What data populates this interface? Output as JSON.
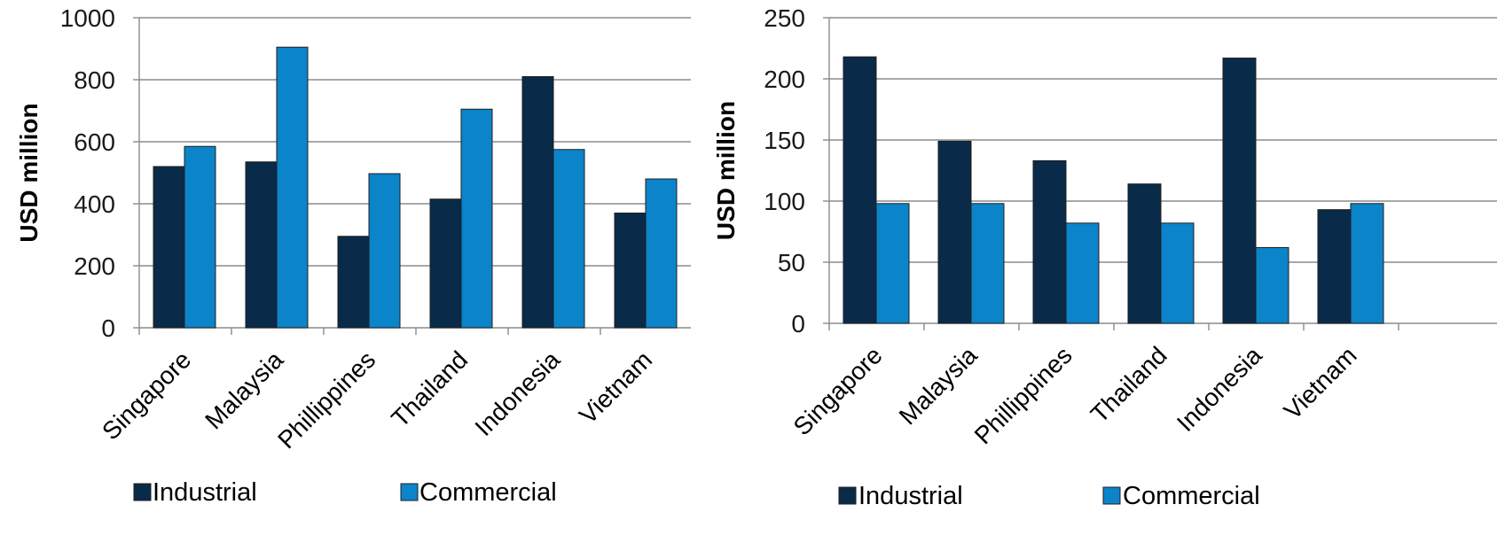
{
  "chart_data": [
    {
      "type": "bar",
      "title": "",
      "xlabel": "",
      "ylabel": "USD million",
      "ylim": [
        0,
        1000
      ],
      "yticks": [
        "0",
        "200",
        "400",
        "600",
        "800",
        "1000"
      ],
      "categories": [
        "Singapore",
        "Malaysia",
        "Phillippines",
        "Thailand",
        "Indonesia",
        "Vietnam"
      ],
      "series": [
        {
          "name": "Industrial",
          "color": "#0a2a4a",
          "values": [
            520,
            535,
            295,
            415,
            810,
            370
          ]
        },
        {
          "name": "Commercial",
          "color": "#0b84c9",
          "values": [
            585,
            905,
            497,
            705,
            575,
            480
          ]
        }
      ],
      "grid": true,
      "legend": "bottom"
    },
    {
      "type": "bar",
      "title": "",
      "xlabel": "",
      "ylabel": "USD million",
      "ylim": [
        0,
        250
      ],
      "yticks": [
        "0",
        "50",
        "100",
        "150",
        "200",
        "250"
      ],
      "categories": [
        "Singapore",
        "Malaysia",
        "Phillippines",
        "Thailand",
        "Indonesia",
        "Vietnam"
      ],
      "series": [
        {
          "name": "Industrial",
          "color": "#0a2a4a",
          "values": [
            218,
            149,
            133,
            114,
            217,
            93
          ]
        },
        {
          "name": "Commercial",
          "color": "#0b84c9",
          "values": [
            98,
            98,
            82,
            82,
            62,
            98
          ]
        }
      ],
      "grid": true,
      "legend": "bottom"
    }
  ]
}
